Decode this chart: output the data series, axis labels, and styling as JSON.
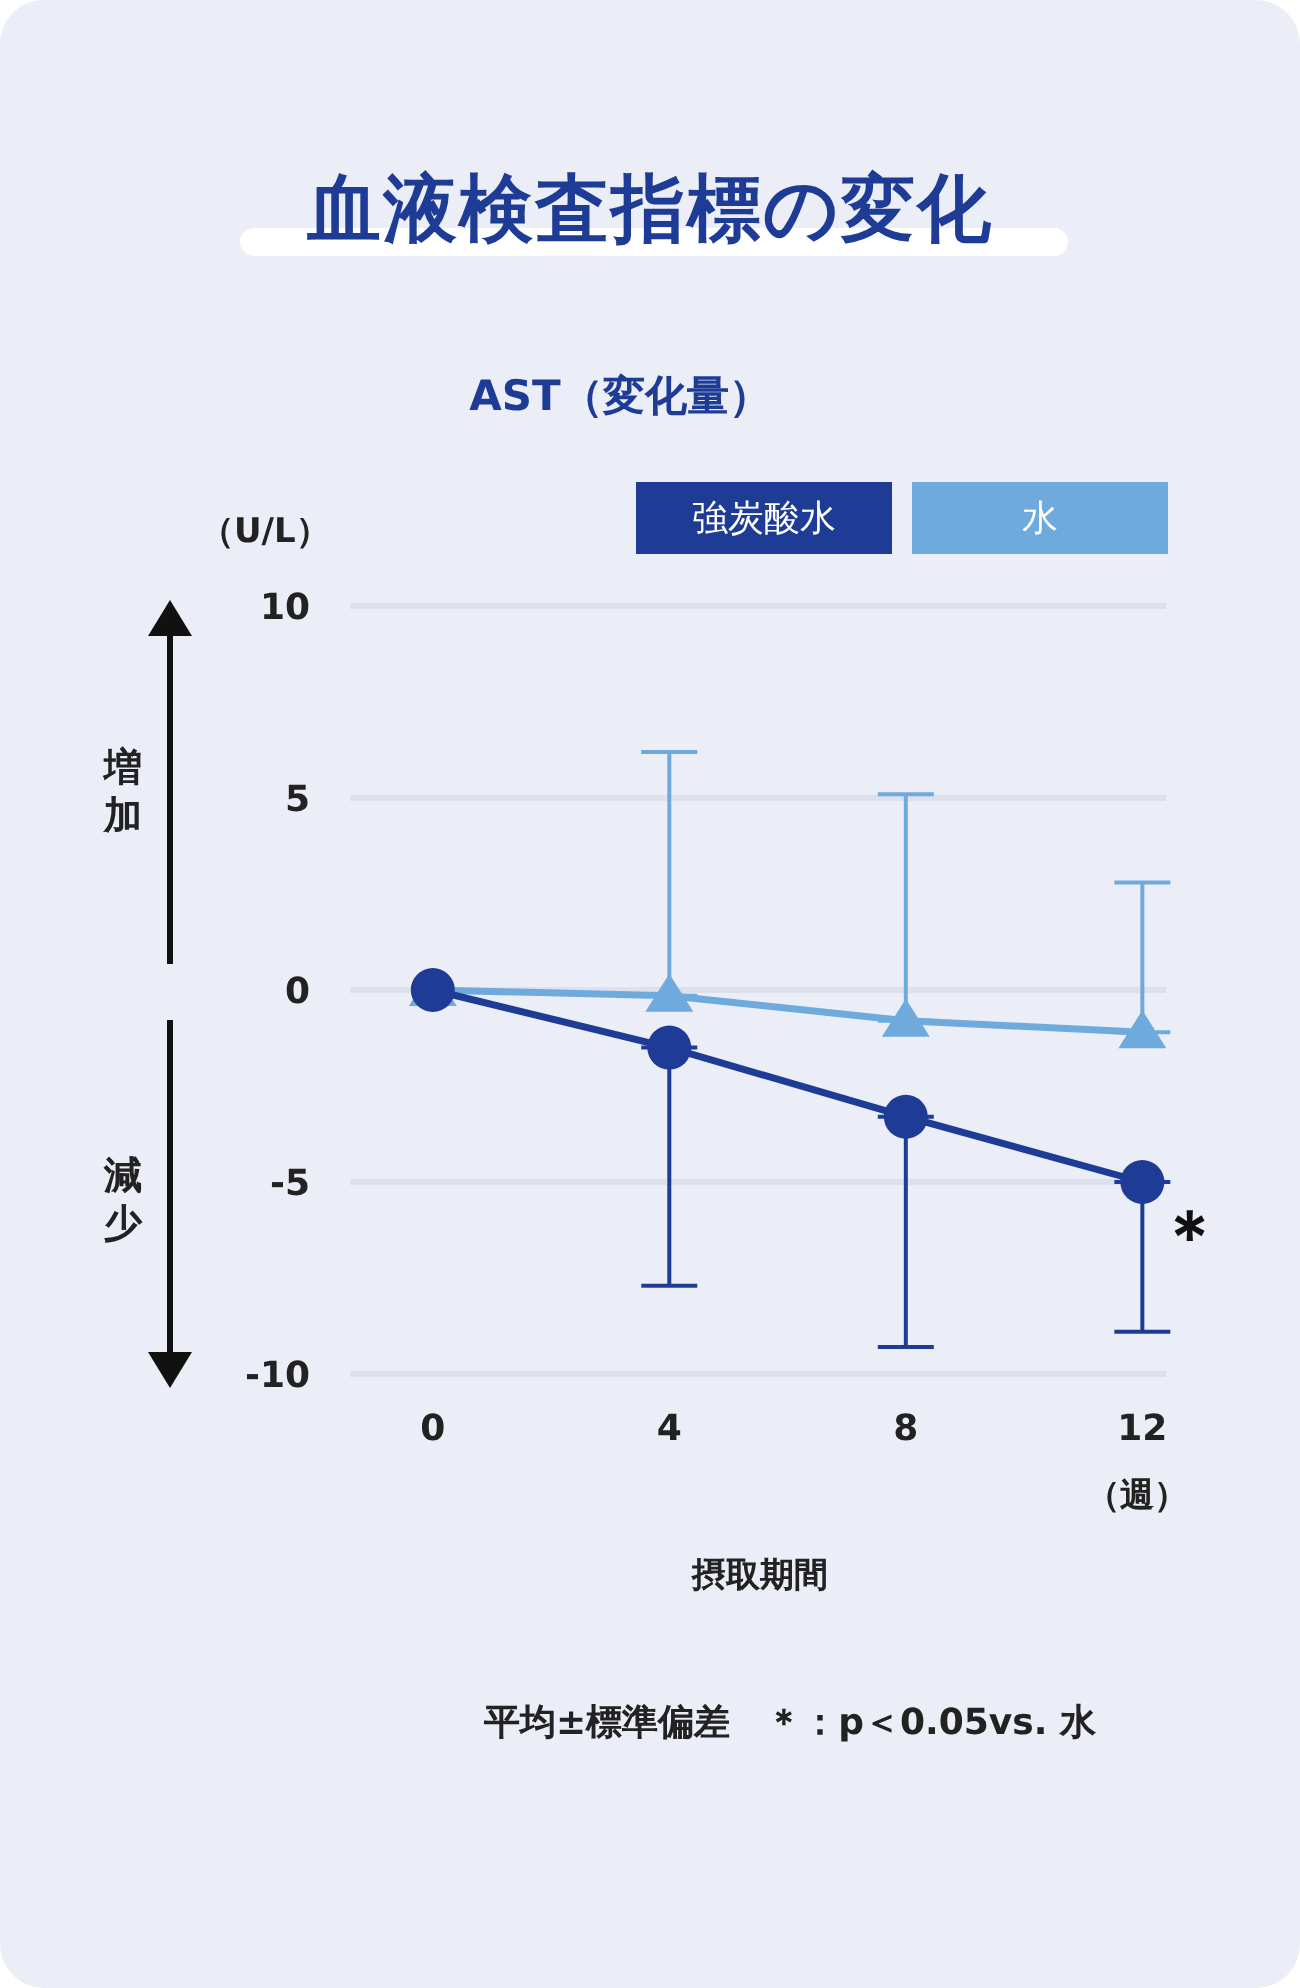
{
  "chart_data": {
    "type": "line",
    "title": "血液検査指標の変化",
    "subtitle": "AST（変化量）",
    "ylabel": "（U/L）",
    "xlabel": "摂取期間",
    "x": [
      0,
      4,
      8,
      12
    ],
    "xlim": [
      -1.4,
      12.4
    ],
    "xticks": [
      0,
      4,
      8,
      12
    ],
    "ylim": [
      -10,
      10
    ],
    "yticks": [
      -10,
      -5,
      0,
      5,
      10
    ],
    "grid": "y",
    "legend": "top right",
    "line_style": "solid",
    "series": [
      {
        "name": "強炭酸水",
        "color": "#1e3c96",
        "marker": "circle",
        "values": [
          0,
          -1.5,
          -3.3,
          -5.0
        ],
        "errors": [
          null,
          [
            -7.7,
            -1.5
          ],
          [
            -9.3,
            -3.3
          ],
          [
            -8.9,
            -5.0
          ]
        ]
      },
      {
        "name": "水",
        "color": "#6eaadc",
        "marker": "triangle",
        "values": [
          0,
          -0.15,
          -0.8,
          -1.1
        ],
        "errors": [
          null,
          [
            -0.15,
            6.2
          ],
          [
            -0.8,
            5.1
          ],
          [
            -1.1,
            2.8
          ]
        ]
      }
    ],
    "annotations": [
      "（週）",
      "増加",
      "減少",
      "平均±標準偏差　＊：p＜0.05vs. 水",
      {
        "text": "＊",
        "x": 12,
        "y": -5.0
      }
    ]
  }
}
